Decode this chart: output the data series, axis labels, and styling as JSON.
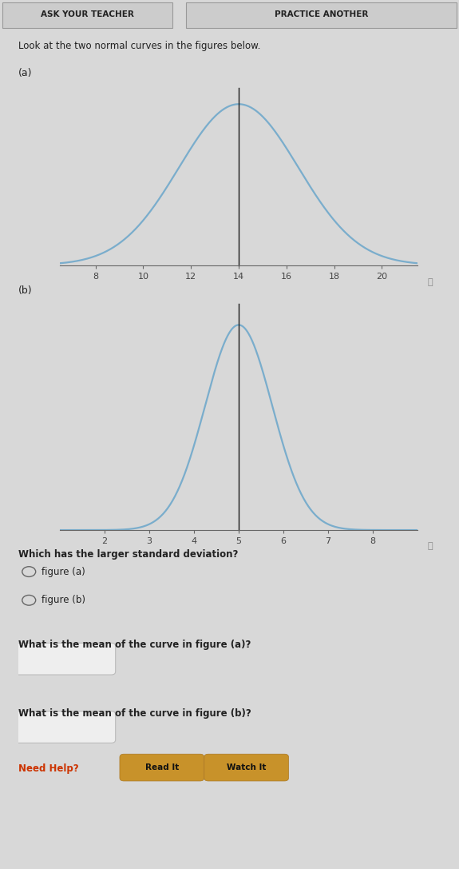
{
  "fig_width": 5.75,
  "fig_height": 10.87,
  "bg_color": "#d8d8d8",
  "page_bg": "#e0e0e0",
  "header_bg": "#c8c8c8",
  "header_buttons": [
    "ASK YOUR TEACHER",
    "PRACTICE ANOTHER"
  ],
  "intro_text": "Look at the two normal curves in the figures below.",
  "curve_a": {
    "label": "(a)",
    "mean": 14,
    "std": 2.5,
    "xmin": 6.5,
    "xmax": 21.5,
    "xticks": [
      8,
      10,
      12,
      14,
      16,
      18,
      20
    ],
    "curve_color": "#7aadcc",
    "line_color": "#1a1a1a"
  },
  "curve_b": {
    "label": "(b)",
    "mean": 5,
    "std": 0.75,
    "xmin": 1.0,
    "xmax": 9.0,
    "xticks": [
      2,
      3,
      4,
      5,
      6,
      7,
      8
    ],
    "curve_color": "#7aadcc",
    "line_color": "#1a1a1a"
  },
  "question1": "Which has the larger standard deviation?",
  "radio_options": [
    "figure (a)",
    "figure (b)"
  ],
  "question2": "What is the mean of the curve in figure (a)?",
  "question3": "What is the mean of the curve in figure (b)?",
  "need_help_text": "Need Help?",
  "button1_text": "Read It",
  "button2_text": "Watch It",
  "button_color": "#c8922a",
  "info_circle_color": "#888888",
  "text_color": "#222222",
  "label_fontsize": 9,
  "tick_fontsize": 8,
  "question_fontsize": 8.5
}
